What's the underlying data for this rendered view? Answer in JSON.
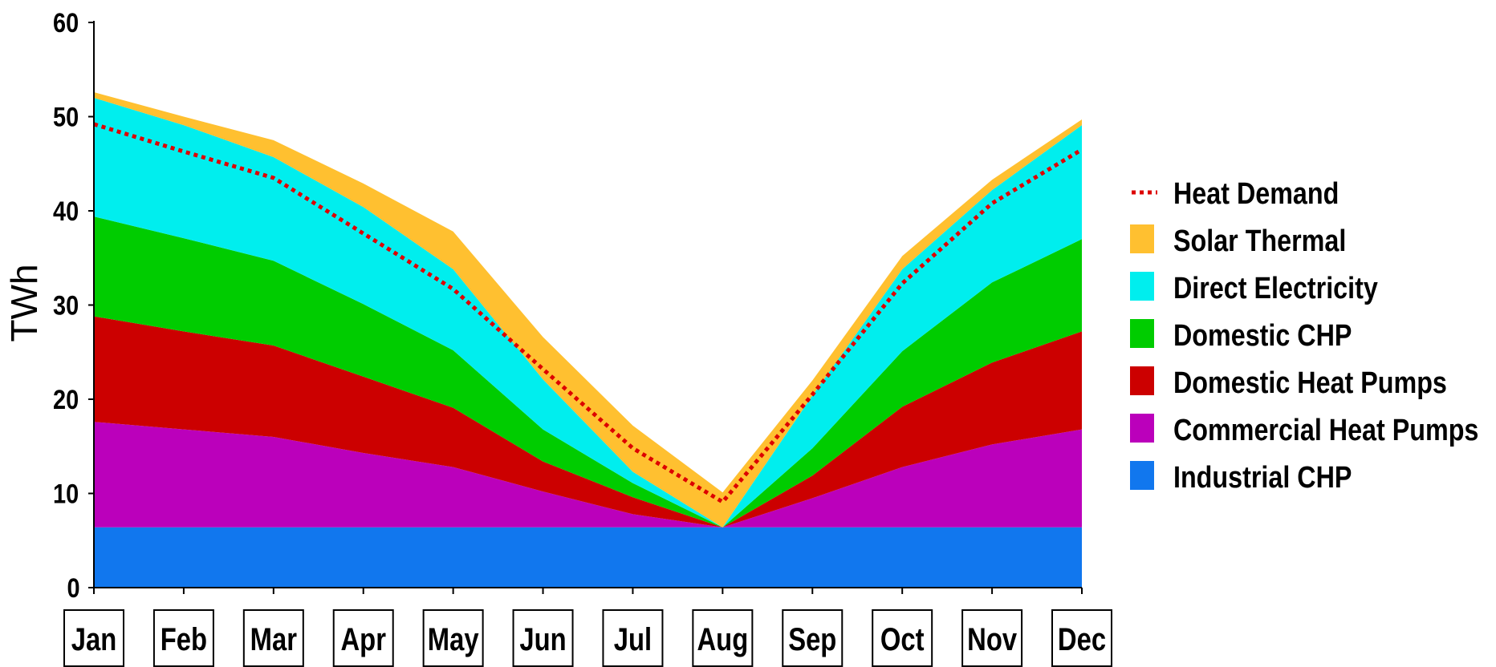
{
  "chart_data": {
    "type": "area",
    "title": "",
    "xlabel": "",
    "ylabel": "TWh",
    "ylim": [
      0,
      60
    ],
    "yticks": [
      0,
      10,
      20,
      30,
      40,
      50,
      60
    ],
    "categories": [
      "Jan",
      "Feb",
      "Mar",
      "Apr",
      "May",
      "Jun",
      "Jul",
      "Aug",
      "Sep",
      "Oct",
      "Nov",
      "Dec"
    ],
    "stacked": true,
    "legend_position": "right",
    "grid": false,
    "series": [
      {
        "name": "Industrial CHP",
        "color": "#1177EE",
        "values": [
          6.4,
          6.4,
          6.4,
          6.4,
          6.4,
          6.4,
          6.4,
          6.4,
          6.4,
          6.4,
          6.4,
          6.4
        ]
      },
      {
        "name": "Commercial Heat Pumps",
        "color": "#BB00BB",
        "values": [
          11.2,
          10.4,
          9.6,
          7.9,
          6.4,
          3.8,
          1.4,
          0,
          3.1,
          6.4,
          8.8,
          10.4
        ]
      },
      {
        "name": "Domestic Heat Pumps",
        "color": "#CC0000",
        "values": [
          11.2,
          10.4,
          9.7,
          8.1,
          6.3,
          3.2,
          1.8,
          0,
          2.4,
          6.4,
          8.7,
          10.4
        ]
      },
      {
        "name": "Domestic CHP",
        "color": "#00CC00",
        "values": [
          10.6,
          9.9,
          9.0,
          7.7,
          6.1,
          3.4,
          1.5,
          0,
          2.9,
          5.9,
          8.5,
          9.8
        ]
      },
      {
        "name": "Direct Electricity",
        "color": "#00EEEE",
        "values": [
          12.6,
          12.0,
          11.0,
          10.3,
          8.6,
          5.3,
          1.2,
          0,
          5.6,
          8.7,
          9.8,
          12.1
        ]
      },
      {
        "name": "Solar Thermal",
        "color": "#FFC030",
        "values": [
          0.6,
          0.9,
          1.8,
          2.5,
          4.0,
          4.5,
          4.9,
          3.7,
          1.6,
          1.4,
          1.1,
          0.6
        ]
      }
    ],
    "line_series": {
      "name": "Heat Demand",
      "color": "#DD0000",
      "style": "dotted",
      "values": [
        49.2,
        46.3,
        43.5,
        37.6,
        31.7,
        23.2,
        14.8,
        9.1,
        20.5,
        32.3,
        40.8,
        46.5
      ]
    },
    "legend": [
      "Heat Demand",
      "Solar Thermal",
      "Direct Electricity",
      "Domestic CHP",
      "Domestic Heat Pumps",
      "Commercial Heat Pumps",
      "Industrial CHP"
    ]
  }
}
